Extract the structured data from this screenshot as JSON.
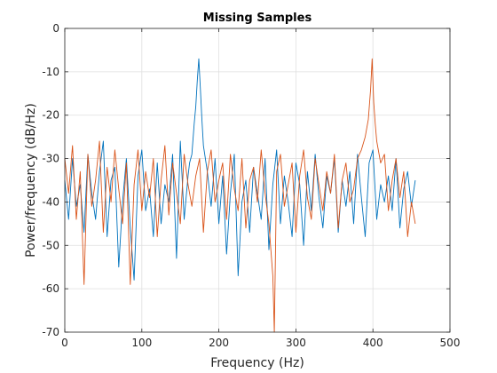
{
  "chart_data": {
    "type": "line",
    "title": "Missing Samples",
    "xlabel": "Frequency (Hz)",
    "ylabel": "Power/frequency (dB/Hz)",
    "xlim": [
      0,
      500
    ],
    "ylim": [
      -70,
      0
    ],
    "xticks": [
      0,
      100,
      200,
      300,
      400,
      500
    ],
    "yticks": [
      -70,
      -60,
      -50,
      -40,
      -30,
      -20,
      -10,
      0
    ],
    "grid": true,
    "series": [
      {
        "color": "#0072BD",
        "x": [
          0,
          5,
          10,
          15,
          20,
          25,
          30,
          35,
          40,
          45,
          50,
          55,
          60,
          65,
          70,
          75,
          80,
          85,
          90,
          95,
          100,
          105,
          110,
          115,
          120,
          125,
          130,
          135,
          140,
          145,
          150,
          155,
          160,
          162,
          165,
          168,
          170,
          172,
          174,
          176,
          178,
          180,
          185,
          190,
          195,
          200,
          205,
          210,
          215,
          220,
          225,
          230,
          235,
          240,
          245,
          250,
          255,
          260,
          265,
          270,
          275,
          280,
          285,
          290,
          295,
          300,
          305,
          310,
          315,
          320,
          325,
          330,
          335,
          340,
          345,
          350,
          355,
          360,
          365,
          370,
          375,
          380,
          385,
          390,
          395,
          400,
          405,
          410,
          415,
          420,
          425,
          430,
          435,
          440,
          445,
          450,
          455
        ],
        "y": [
          -35,
          -44,
          -30,
          -41,
          -36,
          -47,
          -29,
          -38,
          -44,
          -33,
          -26,
          -48,
          -35,
          -32,
          -55,
          -40,
          -30,
          -46,
          -58,
          -34,
          -28,
          -42,
          -37,
          -48,
          -31,
          -45,
          -36,
          -40,
          -29,
          -53,
          -26,
          -44,
          -34,
          -31,
          -29,
          -22,
          -18,
          -12,
          -7,
          -14,
          -21,
          -27,
          -33,
          -41,
          -30,
          -45,
          -34,
          -52,
          -38,
          -29,
          -57,
          -40,
          -35,
          -47,
          -32,
          -38,
          -44,
          -30,
          -51,
          -36,
          -28,
          -45,
          -34,
          -40,
          -48,
          -31,
          -36,
          -50,
          -33,
          -42,
          -29,
          -39,
          -46,
          -34,
          -38,
          -30,
          -47,
          -35,
          -41,
          -33,
          -45,
          -29,
          -39,
          -48,
          -31,
          -28,
          -44,
          -36,
          -40,
          -34,
          -42,
          -30,
          -46,
          -37,
          -33,
          -41,
          -35
        ]
      },
      {
        "color": "#D95319",
        "x": [
          0,
          5,
          10,
          15,
          20,
          25,
          30,
          35,
          40,
          45,
          50,
          55,
          60,
          65,
          70,
          75,
          80,
          85,
          90,
          95,
          100,
          105,
          110,
          115,
          120,
          125,
          130,
          135,
          140,
          145,
          150,
          155,
          160,
          165,
          170,
          175,
          180,
          185,
          190,
          195,
          200,
          205,
          210,
          215,
          220,
          225,
          230,
          235,
          240,
          245,
          250,
          255,
          260,
          265,
          270,
          272,
          275,
          280,
          285,
          290,
          295,
          300,
          305,
          310,
          315,
          320,
          325,
          330,
          335,
          340,
          345,
          350,
          355,
          360,
          365,
          370,
          375,
          380,
          385,
          390,
          394,
          397,
          399,
          401,
          403,
          405,
          410,
          415,
          420,
          425,
          430,
          435,
          440,
          445,
          450,
          455
        ],
        "y": [
          -30,
          -38,
          -27,
          -44,
          -33,
          -59,
          -29,
          -41,
          -35,
          -26,
          -47,
          -32,
          -40,
          -28,
          -37,
          -45,
          -31,
          -59,
          -36,
          -28,
          -42,
          -33,
          -39,
          -30,
          -48,
          -35,
          -27,
          -43,
          -31,
          -38,
          -45,
          -29,
          -36,
          -41,
          -34,
          -30,
          -47,
          -33,
          -28,
          -40,
          -35,
          -31,
          -44,
          -29,
          -37,
          -42,
          -30,
          -46,
          -35,
          -32,
          -40,
          -28,
          -38,
          -45,
          -57,
          -70,
          -33,
          -29,
          -41,
          -36,
          -31,
          -47,
          -34,
          -28,
          -39,
          -44,
          -30,
          -36,
          -42,
          -33,
          -38,
          -29,
          -46,
          -35,
          -31,
          -40,
          -37,
          -30,
          -28,
          -25,
          -21,
          -14,
          -7,
          -17,
          -22,
          -26,
          -31,
          -29,
          -42,
          -35,
          -30,
          -39,
          -33,
          -48,
          -40,
          -45
        ]
      }
    ]
  }
}
